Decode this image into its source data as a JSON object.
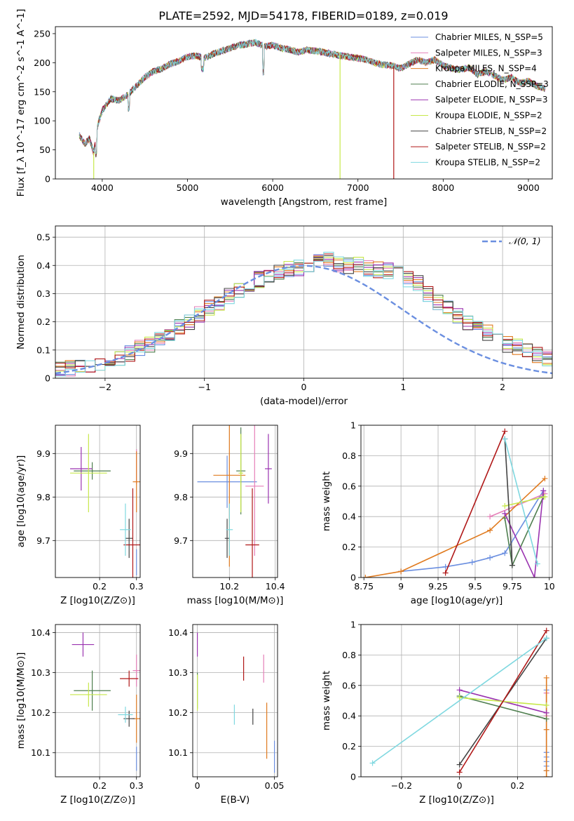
{
  "page": {
    "title": "PLATE=2592, MJD=54178, FIBERID=0189, z=0.019"
  },
  "chart_data": [
    {
      "id": "spectrum",
      "type": "line",
      "xlabel": "wavelength [Angstrom, rest frame]",
      "ylabel": "Flux [f_λ 10^-17 erg cm^-2 s^-1 A^-1]",
      "xlim": [
        3450,
        9280
      ],
      "ylim": [
        0,
        262
      ],
      "xticks": [
        4000,
        5000,
        6000,
        7000,
        8000,
        9000
      ],
      "yticks": [
        0,
        50,
        100,
        150,
        200,
        250
      ],
      "legend_position": "top-right",
      "continuum_x": [
        3730,
        3800,
        3850,
        3900,
        3950,
        4000,
        4100,
        4200,
        4300,
        4400,
        4500,
        4600,
        4700,
        4800,
        4900,
        5000,
        5100,
        5200,
        5300,
        5400,
        5500,
        5600,
        5700,
        5800,
        5900,
        6000,
        6100,
        6200,
        6300,
        6400,
        6500,
        6600,
        6700,
        6800,
        6900,
        7000,
        7100,
        7200,
        7300,
        7400,
        7500,
        7600,
        7700,
        7800,
        7900,
        8000,
        8100,
        8200,
        8300,
        8400,
        8500,
        8600,
        8700,
        8800,
        8900,
        9000,
        9100,
        9200
      ],
      "continuum_y": [
        75,
        60,
        70,
        45,
        95,
        118,
        138,
        135,
        145,
        160,
        175,
        185,
        190,
        198,
        203,
        210,
        212,
        208,
        215,
        220,
        225,
        230,
        232,
        235,
        228,
        230,
        225,
        222,
        218,
        222,
        220,
        218,
        215,
        212,
        210,
        208,
        205,
        200,
        196,
        195,
        190,
        198,
        205,
        200,
        205,
        195,
        190,
        188,
        192,
        180,
        185,
        178,
        170,
        175,
        165,
        168,
        160,
        155
      ],
      "dropout_x": [
        3900,
        6790,
        7420
      ],
      "series": [
        {
          "name": "Chabrier MILES, N_SSP=5",
          "color": "#6b8fe0"
        },
        {
          "name": "Salpeter MILES, N_SSP=3",
          "color": "#e57fb8"
        },
        {
          "name": "Kroupa MILES, N_SSP=4",
          "color": "#e07b20"
        },
        {
          "name": "Chabrier ELODIE, N_SSP=3",
          "color": "#4f7f4f"
        },
        {
          "name": "Salpeter ELODIE, N_SSP=3",
          "color": "#9a33b0"
        },
        {
          "name": "Kroupa ELODIE, N_SSP=2",
          "color": "#c7e84a"
        },
        {
          "name": "Chabrier STELIB, N_SSP=2",
          "color": "#444444"
        },
        {
          "name": "Salpeter STELIB, N_SSP=2",
          "color": "#b01818"
        },
        {
          "name": "Kroupa STELIB, N_SSP=2",
          "color": "#7fd8e0"
        }
      ]
    },
    {
      "id": "residuals",
      "type": "line",
      "xlabel": "(data-model)/error",
      "ylabel": "Normed distribution",
      "xlim": [
        -2.5,
        2.5
      ],
      "ylim": [
        0,
        0.54
      ],
      "xticks": [
        -2,
        -1,
        0,
        1,
        2
      ],
      "yticks": [
        0.0,
        0.1,
        0.2,
        0.3,
        0.4,
        0.5
      ],
      "grid": true,
      "legend_position": "top-right",
      "gaussian_label": "𝒩(0, 1)",
      "gaussian_color": "#6b8fe0",
      "bin_edges_start": -2.5,
      "bin_width": 0.1,
      "base_histogram": [
        0.03,
        0.035,
        0.04,
        0.045,
        0.055,
        0.065,
        0.075,
        0.09,
        0.105,
        0.12,
        0.14,
        0.16,
        0.18,
        0.2,
        0.225,
        0.25,
        0.27,
        0.29,
        0.31,
        0.33,
        0.35,
        0.36,
        0.375,
        0.385,
        0.39,
        0.395,
        0.41,
        0.42,
        0.405,
        0.4,
        0.4,
        0.39,
        0.385,
        0.38,
        0.37,
        0.35,
        0.34,
        0.3,
        0.27,
        0.25,
        0.22,
        0.2,
        0.18,
        0.16,
        0.14,
        0.12,
        0.11,
        0.1,
        0.085,
        0.07
      ]
    },
    {
      "id": "age-vs-z",
      "type": "scatter",
      "xlabel": "Z [log10(Z/Z⊙)]",
      "ylabel": "age  [log10(age/yr)]",
      "xlim": [
        0.08,
        0.31
      ],
      "ylim": [
        9.615,
        9.965
      ],
      "xticks": [
        0.2,
        0.3
      ],
      "yticks": [
        9.7,
        9.8,
        9.9
      ],
      "points": [
        {
          "x": 0.3,
          "y": 9.65,
          "xerr": 0.0,
          "yerr": 0.03,
          "color": "#6b8fe0"
        },
        {
          "x": 0.3,
          "y": 9.87,
          "xerr": 0.0,
          "yerr": 0.04,
          "color": "#e57fb8"
        },
        {
          "x": 0.3,
          "y": 9.835,
          "xerr": 0.01,
          "yerr": 0.07,
          "color": "#e07b20"
        },
        {
          "x": 0.18,
          "y": 9.86,
          "xerr": 0.05,
          "yerr": 0.02,
          "color": "#4f7f4f"
        },
        {
          "x": 0.15,
          "y": 9.865,
          "xerr": 0.03,
          "yerr": 0.05,
          "color": "#9a33b0"
        },
        {
          "x": 0.17,
          "y": 9.855,
          "xerr": 0.05,
          "yerr": 0.09,
          "color": "#c7e84a"
        },
        {
          "x": 0.28,
          "y": 9.705,
          "xerr": 0.01,
          "yerr": 0.045,
          "color": "#444444"
        },
        {
          "x": 0.29,
          "y": 9.69,
          "xerr": 0.025,
          "yerr": 0.13,
          "color": "#b01818"
        },
        {
          "x": 0.27,
          "y": 9.725,
          "xerr": 0.015,
          "yerr": 0.06,
          "color": "#7fd8e0"
        }
      ]
    },
    {
      "id": "age-vs-mass",
      "type": "scatter",
      "xlabel": "mass [log10(M/M⊙)]",
      "ylabel": "",
      "xlim": [
        10.04,
        10.41
      ],
      "ylim": [
        9.615,
        9.965
      ],
      "xticks": [
        10.2,
        10.4
      ],
      "yticks": [
        9.7,
        9.8,
        9.9
      ],
      "points": [
        {
          "x": 10.19,
          "y": 9.835,
          "xerr": 0.13,
          "yerr": 0.06,
          "color": "#6b8fe0"
        },
        {
          "x": 10.31,
          "y": 9.825,
          "xerr": 0.04,
          "yerr": 0.16,
          "color": "#e57fb8"
        },
        {
          "x": 10.2,
          "y": 9.85,
          "xerr": 0.07,
          "yerr": 0.21,
          "color": "#e07b20"
        },
        {
          "x": 10.25,
          "y": 9.86,
          "xerr": 0.02,
          "yerr": 0.1,
          "color": "#4f7f4f"
        },
        {
          "x": 10.37,
          "y": 9.865,
          "xerr": 0.015,
          "yerr": 0.08,
          "color": "#9a33b0"
        },
        {
          "x": 10.25,
          "y": 9.855,
          "xerr": 0.01,
          "yerr": 0.09,
          "color": "#c7e84a"
        },
        {
          "x": 10.19,
          "y": 9.705,
          "xerr": 0.01,
          "yerr": 0.045,
          "color": "#444444"
        },
        {
          "x": 10.3,
          "y": 9.69,
          "xerr": 0.03,
          "yerr": 0.13,
          "color": "#b01818"
        },
        {
          "x": 10.2,
          "y": 9.725,
          "xerr": 0.015,
          "yerr": 0.06,
          "color": "#7fd8e0"
        }
      ]
    },
    {
      "id": "weight-vs-age",
      "type": "line",
      "xlabel": "age  [log10(age/yr)]",
      "ylabel": "mass weight",
      "xlim": [
        8.73,
        10.02
      ],
      "ylim": [
        0,
        1.0
      ],
      "xticks": [
        8.75,
        9.0,
        9.25,
        9.5,
        9.75,
        10.0
      ],
      "yticks": [
        0.0,
        0.2,
        0.4,
        0.6,
        0.8,
        1.0
      ],
      "grid": true,
      "series": [
        {
          "color": "#6b8fe0",
          "points": [
            [
              9.0,
              0.04
            ],
            [
              9.3,
              0.07
            ],
            [
              9.48,
              0.1
            ],
            [
              9.6,
              0.13
            ],
            [
              9.7,
              0.16
            ],
            [
              9.96,
              0.57
            ]
          ]
        },
        {
          "color": "#e57fb8",
          "points": [
            [
              9.6,
              0.4
            ],
            [
              9.97,
              0.55
            ]
          ]
        },
        {
          "color": "#e07b20",
          "points": [
            [
              8.76,
              0.0
            ],
            [
              9.0,
              0.04
            ],
            [
              9.6,
              0.31
            ],
            [
              9.97,
              0.65
            ]
          ]
        },
        {
          "color": "#4f7f4f",
          "points": [
            [
              9.7,
              0.39
            ],
            [
              9.75,
              0.08
            ],
            [
              9.96,
              0.53
            ]
          ]
        },
        {
          "color": "#9a33b0",
          "points": [
            [
              9.7,
              0.42
            ],
            [
              9.9,
              0.0
            ],
            [
              9.96,
              0.57
            ]
          ]
        },
        {
          "color": "#c7e84a",
          "points": [
            [
              9.7,
              0.47
            ],
            [
              9.97,
              0.53
            ]
          ]
        },
        {
          "color": "#444444",
          "points": [
            [
              9.7,
              0.91
            ],
            [
              9.75,
              0.08
            ]
          ]
        },
        {
          "color": "#b01818",
          "points": [
            [
              9.3,
              0.03
            ],
            [
              9.7,
              0.96
            ]
          ]
        },
        {
          "color": "#7fd8e0",
          "points": [
            [
              9.7,
              0.91
            ],
            [
              9.92,
              0.09
            ]
          ]
        }
      ]
    },
    {
      "id": "mass-vs-z",
      "type": "scatter",
      "xlabel": "Z [log10(Z/Z⊙)]",
      "ylabel": "mass [log10(M/M⊙)]",
      "xlim": [
        0.08,
        0.31
      ],
      "ylim": [
        10.04,
        10.42
      ],
      "xticks": [
        0.2,
        0.3
      ],
      "yticks": [
        10.1,
        10.2,
        10.3,
        10.4
      ],
      "points": [
        {
          "x": 0.3,
          "y": 10.085,
          "xerr": 0.0,
          "yerr": 0.03,
          "color": "#6b8fe0"
        },
        {
          "x": 0.3,
          "y": 10.305,
          "xerr": 0.01,
          "yerr": 0.04,
          "color": "#e57fb8"
        },
        {
          "x": 0.3,
          "y": 10.185,
          "xerr": 0.01,
          "yerr": 0.06,
          "color": "#e07b20"
        },
        {
          "x": 0.18,
          "y": 10.255,
          "xerr": 0.05,
          "yerr": 0.05,
          "color": "#4f7f4f"
        },
        {
          "x": 0.155,
          "y": 10.37,
          "xerr": 0.03,
          "yerr": 0.03,
          "color": "#9a33b0"
        },
        {
          "x": 0.17,
          "y": 10.245,
          "xerr": 0.05,
          "yerr": 0.03,
          "color": "#c7e84a"
        },
        {
          "x": 0.28,
          "y": 10.185,
          "xerr": 0.015,
          "yerr": 0.02,
          "color": "#444444"
        },
        {
          "x": 0.28,
          "y": 10.285,
          "xerr": 0.025,
          "yerr": 0.02,
          "color": "#b01818"
        },
        {
          "x": 0.27,
          "y": 10.195,
          "xerr": 0.02,
          "yerr": 0.02,
          "color": "#7fd8e0"
        }
      ]
    },
    {
      "id": "mass-vs-ebv",
      "type": "scatter",
      "xlabel": "E(B-V)",
      "ylabel": "",
      "xlim": [
        -0.003,
        0.052
      ],
      "ylim": [
        10.04,
        10.42
      ],
      "xticks": [
        0.0,
        0.05
      ],
      "yticks": [
        10.1,
        10.2,
        10.3,
        10.4
      ],
      "points": [
        {
          "x": 0.05,
          "y": 10.09,
          "xerr": 0.0,
          "yerr": 0.04,
          "color": "#6b8fe0"
        },
        {
          "x": 0.043,
          "y": 10.31,
          "xerr": 0.0,
          "yerr": 0.035,
          "color": "#e57fb8"
        },
        {
          "x": 0.045,
          "y": 10.155,
          "xerr": 0.0,
          "yerr": 0.07,
          "color": "#e07b20"
        },
        {
          "x": 0.0,
          "y": 10.255,
          "xerr": 0.0,
          "yerr": 0.045,
          "color": "#4f7f4f"
        },
        {
          "x": 0.0,
          "y": 10.37,
          "xerr": 0.0,
          "yerr": 0.03,
          "color": "#9a33b0"
        },
        {
          "x": 0.0,
          "y": 10.25,
          "xerr": 0.0,
          "yerr": 0.045,
          "color": "#c7e84a"
        },
        {
          "x": 0.036,
          "y": 10.19,
          "xerr": 0.0,
          "yerr": 0.02,
          "color": "#444444"
        },
        {
          "x": 0.03,
          "y": 10.31,
          "xerr": 0.0,
          "yerr": 0.03,
          "color": "#b01818"
        },
        {
          "x": 0.024,
          "y": 10.195,
          "xerr": 0.0,
          "yerr": 0.025,
          "color": "#7fd8e0"
        }
      ]
    },
    {
      "id": "weight-vs-z",
      "type": "line",
      "xlabel": "Z [log10(Z/Z⊙)]",
      "ylabel": "mass weight",
      "xlim": [
        -0.34,
        0.32
      ],
      "ylim": [
        0,
        1.0
      ],
      "xticks": [
        -0.2,
        0.0,
        0.2
      ],
      "yticks": [
        0.0,
        0.2,
        0.4,
        0.6,
        0.8,
        1.0
      ],
      "grid": true,
      "series": [
        {
          "color": "#6b8fe0",
          "points": [
            [
              0.3,
              0.04
            ],
            [
              0.3,
              0.07
            ],
            [
              0.3,
              0.1
            ],
            [
              0.3,
              0.13
            ],
            [
              0.3,
              0.16
            ],
            [
              0.3,
              0.57
            ]
          ]
        },
        {
          "color": "#e57fb8",
          "points": [
            [
              0.3,
              0.4
            ],
            [
              0.3,
              0.55
            ]
          ]
        },
        {
          "color": "#e07b20",
          "points": [
            [
              0.3,
              0.0
            ],
            [
              0.3,
              0.04
            ],
            [
              0.3,
              0.31
            ],
            [
              0.3,
              0.65
            ]
          ]
        },
        {
          "color": "#4f7f4f",
          "points": [
            [
              0.0,
              0.53
            ],
            [
              0.3,
              0.38
            ]
          ]
        },
        {
          "color": "#9a33b0",
          "points": [
            [
              0.0,
              0.57
            ],
            [
              0.3,
              0.42
            ]
          ]
        },
        {
          "color": "#c7e84a",
          "points": [
            [
              0.0,
              0.52
            ],
            [
              0.3,
              0.47
            ]
          ]
        },
        {
          "color": "#444444",
          "points": [
            [
              0.0,
              0.08
            ],
            [
              0.3,
              0.91
            ]
          ]
        },
        {
          "color": "#b01818",
          "points": [
            [
              0.0,
              0.03
            ],
            [
              0.3,
              0.96
            ]
          ]
        },
        {
          "color": "#7fd8e0",
          "points": [
            [
              -0.3,
              0.09
            ],
            [
              0.3,
              0.91
            ]
          ]
        }
      ]
    }
  ]
}
